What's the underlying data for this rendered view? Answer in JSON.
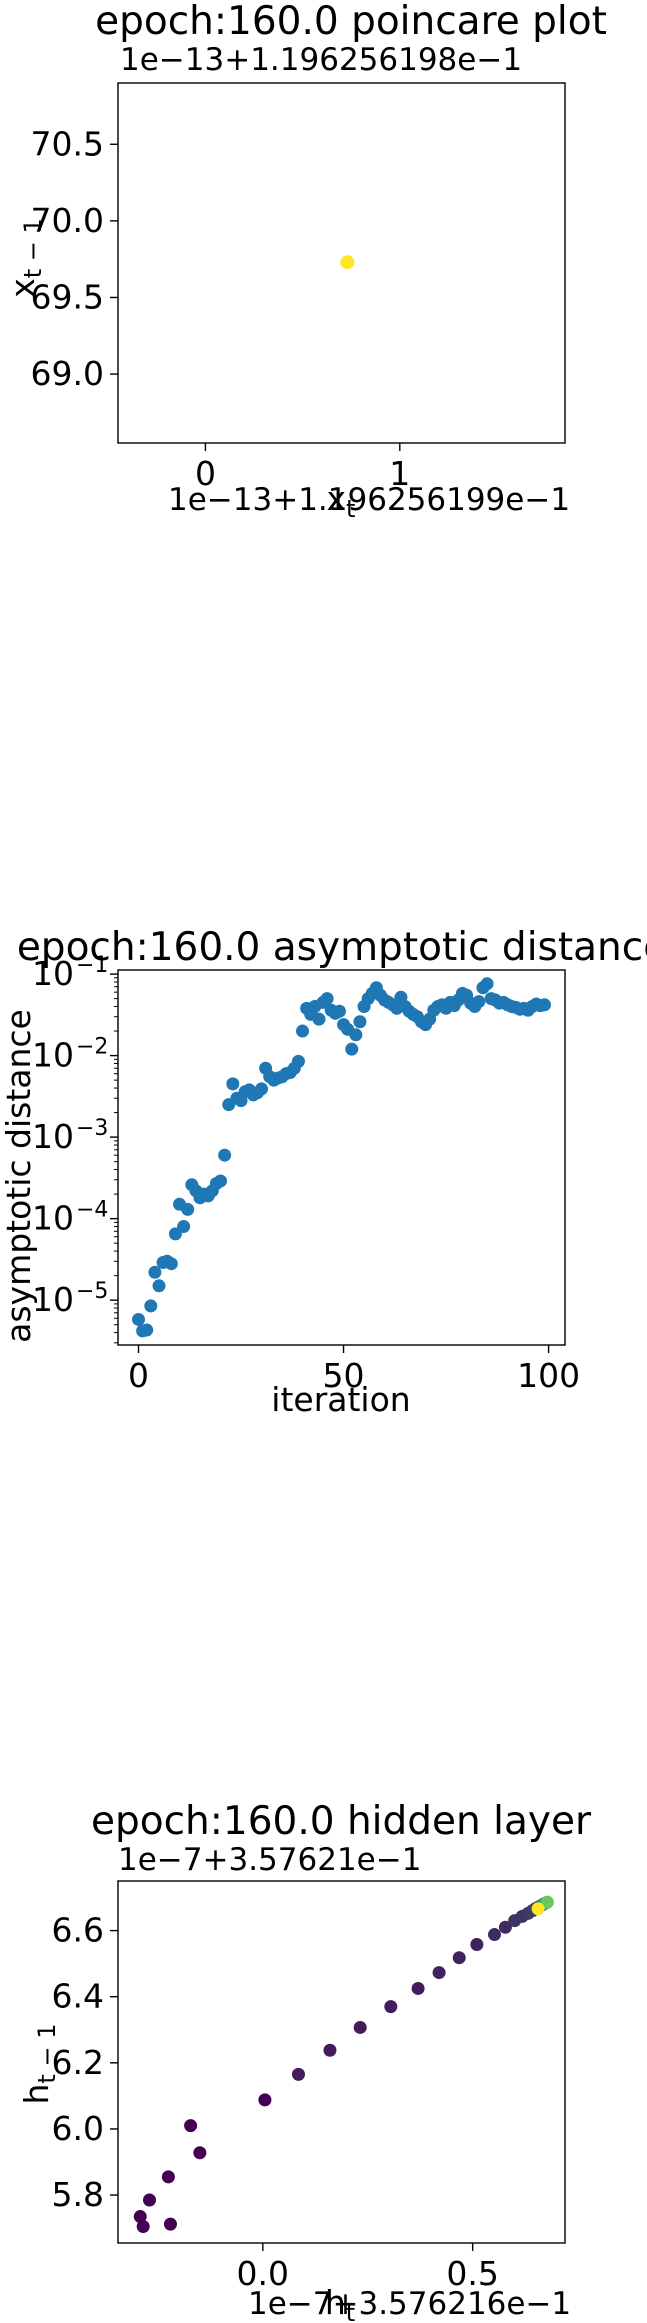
{
  "chart_data": [
    {
      "type": "scatter",
      "title": "epoch:160.0 poincare plot",
      "xlabel": "x_t",
      "ylabel": "x_{t-1}",
      "x_offset_text": "1e−13+1.196256199e−1",
      "y_offset_text": "1e−13+1.196256198e−1",
      "xlim": [
        -0.45,
        1.85
      ],
      "ylim": [
        68.55,
        70.9
      ],
      "xticks": [
        0,
        1
      ],
      "xtick_labels": [
        "0",
        "1"
      ],
      "yticks": [
        69.0,
        69.5,
        70.0,
        70.5
      ],
      "ytick_labels": [
        "69.0",
        "69.5",
        "70.0",
        "70.5"
      ],
      "colormap": "viridis",
      "points": [
        {
          "x": 0.73,
          "y": 69.73,
          "color": "#fde725"
        }
      ]
    },
    {
      "type": "scatter",
      "title": "epoch:160.0 asymptotic distance",
      "xlabel": "iteration",
      "ylabel": "asymptotic distance",
      "yscale": "log",
      "xlim": [
        -5,
        104
      ],
      "ylim_log10": [
        -5.55,
        -0.95
      ],
      "xticks": [
        0,
        50,
        100
      ],
      "xtick_labels": [
        "0",
        "50",
        "100"
      ],
      "yticks_log10": [
        -5,
        -4,
        -3,
        -2,
        -1
      ],
      "ytick_base": "10",
      "ytick_exponents": [
        "−5",
        "−4",
        "−3",
        "−2",
        "−1"
      ],
      "color": "#1f77b4",
      "x": [
        0,
        1,
        2,
        3,
        4,
        5,
        6,
        7,
        8,
        9,
        10,
        11,
        12,
        13,
        14,
        15,
        16,
        17,
        18,
        19,
        20,
        21,
        22,
        23,
        24,
        25,
        26,
        27,
        28,
        29,
        30,
        31,
        32,
        33,
        34,
        35,
        36,
        37,
        38,
        39,
        40,
        41,
        42,
        43,
        44,
        45,
        46,
        47,
        48,
        49,
        50,
        51,
        52,
        53,
        54,
        55,
        56,
        57,
        58,
        59,
        60,
        61,
        62,
        63,
        64,
        65,
        66,
        67,
        68,
        69,
        70,
        71,
        72,
        73,
        74,
        75,
        76,
        77,
        78,
        79,
        80,
        81,
        82,
        83,
        84,
        85,
        86,
        87,
        88,
        89,
        90,
        91,
        92,
        93,
        94,
        95,
        96,
        97,
        98,
        99
      ],
      "y": [
        5.8e-06,
        4.2e-06,
        4.3e-06,
        8.5e-06,
        2.2e-05,
        1.5e-05,
        2.9e-05,
        3e-05,
        2.8e-05,
        6.5e-05,
        0.00015,
        8e-05,
        0.00013,
        0.00026,
        0.00022,
        0.00018,
        0.0002,
        0.00019,
        0.00022,
        0.00027,
        0.00029,
        0.0006,
        0.0025,
        0.0045,
        0.003,
        0.0028,
        0.0036,
        0.0038,
        0.0033,
        0.0035,
        0.0039,
        0.007,
        0.0055,
        0.005,
        0.0053,
        0.0055,
        0.006,
        0.0062,
        0.007,
        0.0085,
        0.02,
        0.038,
        0.032,
        0.04,
        0.028,
        0.045,
        0.05,
        0.036,
        0.033,
        0.035,
        0.024,
        0.021,
        0.012,
        0.018,
        0.026,
        0.04,
        0.05,
        0.058,
        0.068,
        0.055,
        0.048,
        0.045,
        0.042,
        0.038,
        0.052,
        0.04,
        0.035,
        0.032,
        0.03,
        0.026,
        0.024,
        0.028,
        0.036,
        0.04,
        0.042,
        0.038,
        0.045,
        0.041,
        0.048,
        0.058,
        0.055,
        0.044,
        0.04,
        0.046,
        0.068,
        0.076,
        0.05,
        0.048,
        0.044,
        0.045,
        0.042,
        0.04,
        0.039,
        0.037,
        0.038,
        0.036,
        0.04,
        0.043,
        0.041,
        0.042
      ]
    },
    {
      "type": "scatter",
      "title": "epoch:160.0 hidden layer",
      "xlabel": "h_t",
      "ylabel": "h_{t-1}",
      "x_offset_text": "1e−7+3.576216e−1",
      "y_offset_text": "1e−7+3.57621e−1",
      "xlim": [
        -0.345,
        0.72
      ],
      "ylim": [
        5.655,
        6.75
      ],
      "xticks": [
        0.0,
        0.5
      ],
      "xtick_labels": [
        "0.0",
        "0.5"
      ],
      "yticks": [
        5.8,
        6.0,
        6.2,
        6.4,
        6.6
      ],
      "ytick_labels": [
        "5.8",
        "6.0",
        "6.2",
        "6.4",
        "6.6"
      ],
      "colormap": "viridis",
      "points": [
        {
          "x": -0.292,
          "y": 5.735,
          "color": "#440154"
        },
        {
          "x": -0.285,
          "y": 5.705,
          "color": "#440154"
        },
        {
          "x": -0.27,
          "y": 5.785,
          "color": "#440154"
        },
        {
          "x": -0.22,
          "y": 5.712,
          "color": "#440154"
        },
        {
          "x": -0.225,
          "y": 5.855,
          "color": "#440154"
        },
        {
          "x": -0.172,
          "y": 6.01,
          "color": "#440154"
        },
        {
          "x": -0.15,
          "y": 5.928,
          "color": "#440154"
        },
        {
          "x": 0.005,
          "y": 6.088,
          "color": "#440154"
        },
        {
          "x": 0.085,
          "y": 6.165,
          "color": "#441b5b"
        },
        {
          "x": 0.16,
          "y": 6.238,
          "color": "#441b5b"
        },
        {
          "x": 0.232,
          "y": 6.307,
          "color": "#441b5b"
        },
        {
          "x": 0.305,
          "y": 6.37,
          "color": "#421c5e"
        },
        {
          "x": 0.37,
          "y": 6.425,
          "color": "#421c5e"
        },
        {
          "x": 0.42,
          "y": 6.473,
          "color": "#40225f"
        },
        {
          "x": 0.468,
          "y": 6.518,
          "color": "#40225f"
        },
        {
          "x": 0.51,
          "y": 6.558,
          "color": "#40225f"
        },
        {
          "x": 0.552,
          "y": 6.588,
          "color": "#3f2b61"
        },
        {
          "x": 0.578,
          "y": 6.61,
          "color": "#3f2b61"
        },
        {
          "x": 0.6,
          "y": 6.63,
          "color": "#3e3363"
        },
        {
          "x": 0.618,
          "y": 6.643,
          "color": "#3e3363"
        },
        {
          "x": 0.632,
          "y": 6.652,
          "color": "#3d3a66"
        },
        {
          "x": 0.642,
          "y": 6.66,
          "color": "#3d3a66"
        },
        {
          "x": 0.65,
          "y": 6.667,
          "color": "#3b4468"
        },
        {
          "x": 0.658,
          "y": 6.672,
          "color": "#38576d"
        },
        {
          "x": 0.664,
          "y": 6.676,
          "color": "#2f6f75"
        },
        {
          "x": 0.67,
          "y": 6.681,
          "color": "#208e84"
        },
        {
          "x": 0.675,
          "y": 6.684,
          "color": "#2aa97d"
        },
        {
          "x": 0.678,
          "y": 6.686,
          "color": "#6cc658"
        },
        {
          "x": 0.656,
          "y": 6.666,
          "color": "#fde725"
        }
      ]
    }
  ]
}
